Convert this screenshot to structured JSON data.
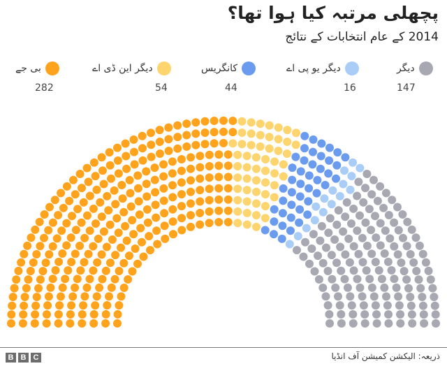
{
  "header": {
    "title": "پچھلی مرتبہ کیا ہوا تھا؟",
    "subtitle": "2014 کے عام انتخابات کے نتائج"
  },
  "legend": [
    {
      "label": "بی جے",
      "value": "282",
      "color": "#FFA31C"
    },
    {
      "label": "دیگر این ڈی اے",
      "value": "54",
      "color": "#FDD46E"
    },
    {
      "label": "کانگریس",
      "value": "44",
      "color": "#6B9BEE"
    },
    {
      "label": "دیگر یو پی اے",
      "value": "16",
      "color": "#A9CDF6"
    },
    {
      "label": "دیگر",
      "value": "147",
      "color": "#A8A8B2"
    }
  ],
  "footer": {
    "logo": [
      "B",
      "B",
      "C"
    ],
    "source": "ذریعہ: الیکشن کمیشن آف انڈیا"
  },
  "chart_data": {
    "type": "parliament",
    "title": "پچھلی مرتبہ کیا ہوا تھا؟",
    "subtitle": "2014 کے عام انتخابات کے نتائج",
    "categories": [
      "بی جے",
      "دیگر این ڈی اے",
      "کانگریس",
      "دیگر یو پی اے",
      "دیگر"
    ],
    "values": [
      282,
      54,
      44,
      16,
      147
    ],
    "colors": [
      "#FFA31C",
      "#FDD46E",
      "#6B9BEE",
      "#A9CDF6",
      "#A8A8B2"
    ],
    "total_seats": 543,
    "rings": 10,
    "legend_position": "top"
  }
}
